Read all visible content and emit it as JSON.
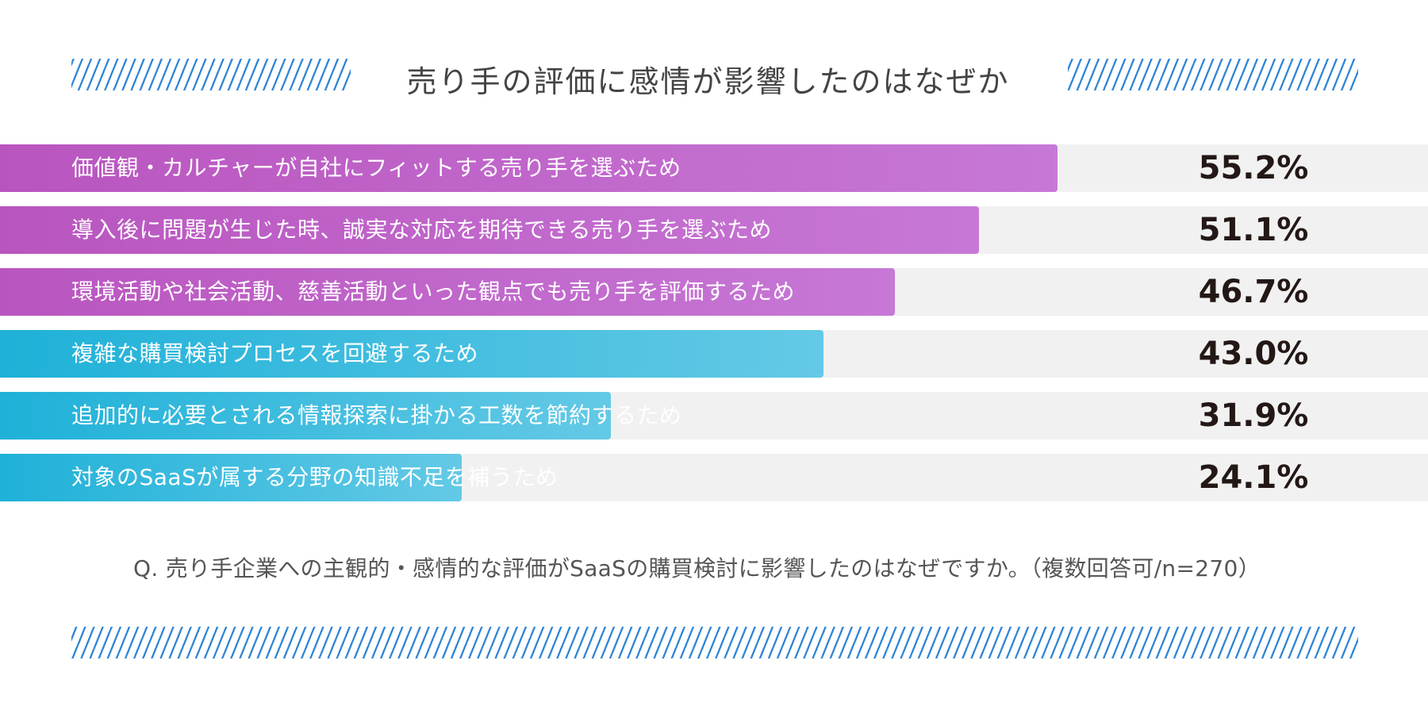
{
  "chart_data": {
    "type": "bar",
    "orientation": "horizontal",
    "title": "売り手の評価に感情が影響したのはなぜか",
    "categories": [
      "価値観・カルチャーが自社にフィットする売り手を選ぶため",
      "導入後に問題が生じた時、誠実な対応を期待できる売り手を選ぶため",
      "環境活動や社会活動、慈善活動といった観点でも売り手を評価するため",
      "複雑な購買検討プロセスを回避するため",
      "追加的に必要とされる情報探索に掛かる工数を節約するため",
      "対象のSaaSが属する分野の知識不足を補うため"
    ],
    "values": [
      55.2,
      51.1,
      46.7,
      43.0,
      31.9,
      24.1
    ],
    "value_labels": [
      "55.2%",
      "51.1%",
      "46.7%",
      "43.0%",
      "31.9%",
      "24.1%"
    ],
    "bar_colors": [
      "magenta",
      "magenta",
      "magenta",
      "cyan",
      "cyan",
      "cyan"
    ],
    "unit": "%",
    "xlim": [
      0,
      100
    ],
    "grid": false,
    "legend": "none"
  },
  "colors": {
    "magenta_start": "#b955bf",
    "magenta_end": "#c778d6",
    "cyan_start": "#1fb1d8",
    "cyan_end": "#64c9e6",
    "track": "#f1f1f1",
    "hatch": "#2f86d8",
    "value_text": "#231815"
  },
  "footnote": "Q. 売り手企業への主観的・感情的な評価がSaaSの購買検討に影響したのはなぜですか。（複数回答可/n=270）"
}
